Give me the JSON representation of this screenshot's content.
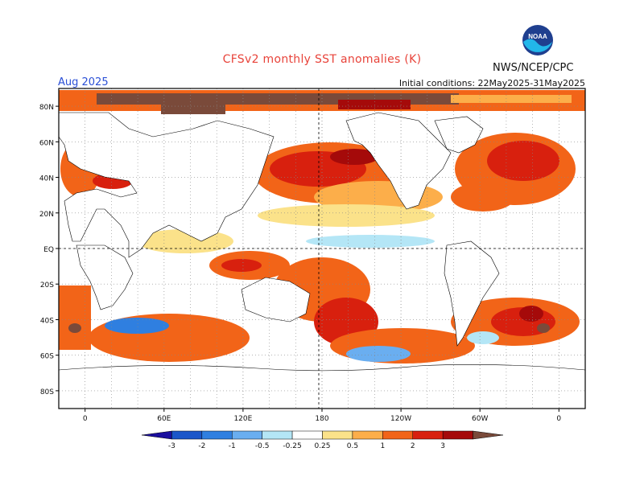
{
  "header": {
    "title": "CFSv2 monthly SST anomalies (K)",
    "org": "NWS/NCEP/CPC",
    "month": "Aug 2025",
    "initial_conditions": "Initial conditions: 22May2025-31May2025",
    "logo_text": "NOAA"
  },
  "map": {
    "lat_labels": [
      "80N",
      "60N",
      "40N",
      "20N",
      "EQ",
      "20S",
      "40S",
      "60S",
      "80S"
    ],
    "lon_labels": [
      "0",
      "60E",
      "120E",
      "180",
      "120W",
      "60W",
      "0"
    ],
    "lat_range": [
      -90,
      90
    ],
    "lon_range": [
      -20,
      380
    ]
  },
  "colorbar": {
    "ticks": [
      "-3",
      "-2",
      "-1",
      "-0.5",
      "-0.25",
      "0.25",
      "0.5",
      "1",
      "2",
      "3"
    ],
    "colors": [
      "#1b0f9e",
      "#1b56c9",
      "#2f7fe0",
      "#6aaef0",
      "#b4e6f6",
      "#ffffff",
      "#fbe28a",
      "#fcae4a",
      "#f26418",
      "#d8200e",
      "#a50a0a",
      "#7a4a3a"
    ]
  }
}
